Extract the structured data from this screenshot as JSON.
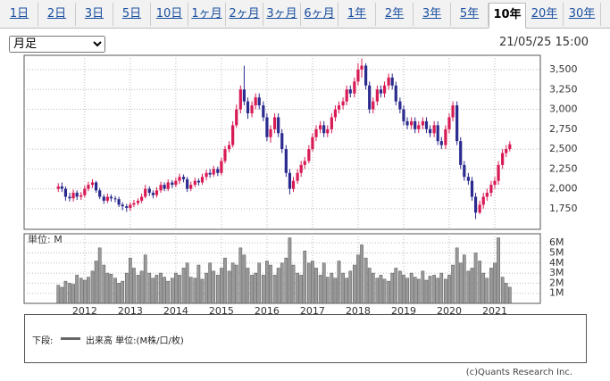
{
  "tabs": [
    "1日",
    "2日",
    "3日",
    "5日",
    "10日",
    "1ヶ月",
    "2ヶ月",
    "3ヶ月",
    "6ヶ月",
    "1年",
    "2年",
    "3年",
    "5年",
    "10年",
    "20年",
    "30年"
  ],
  "period_select": "月足",
  "timestamp": "21/05/25 15:00",
  "chart_data": [
    {
      "type": "candlestick",
      "x": [
        2011.42,
        2011.5,
        2011.58,
        2011.67,
        2011.75,
        2011.83,
        2011.92,
        2012,
        2012.08,
        2012.17,
        2012.25,
        2012.33,
        2012.42,
        2012.5,
        2012.58,
        2012.67,
        2012.75,
        2012.83,
        2012.92,
        2013,
        2013.08,
        2013.17,
        2013.25,
        2013.33,
        2013.42,
        2013.5,
        2013.58,
        2013.67,
        2013.75,
        2013.83,
        2013.92,
        2014,
        2014.08,
        2014.17,
        2014.25,
        2014.33,
        2014.42,
        2014.5,
        2014.58,
        2014.67,
        2014.75,
        2014.83,
        2014.92,
        2015,
        2015.08,
        2015.17,
        2015.25,
        2015.33,
        2015.42,
        2015.5,
        2015.58,
        2015.67,
        2015.75,
        2015.83,
        2015.92,
        2016,
        2016.08,
        2016.17,
        2016.25,
        2016.33,
        2016.42,
        2016.5,
        2016.58,
        2016.67,
        2016.75,
        2016.83,
        2016.92,
        2017,
        2017.08,
        2017.17,
        2017.25,
        2017.33,
        2017.42,
        2017.5,
        2017.58,
        2017.67,
        2017.75,
        2017.83,
        2017.92,
        2018,
        2018.08,
        2018.17,
        2018.25,
        2018.33,
        2018.42,
        2018.5,
        2018.58,
        2018.67,
        2018.75,
        2018.83,
        2018.92,
        2019,
        2019.08,
        2019.17,
        2019.25,
        2019.33,
        2019.42,
        2019.5,
        2019.58,
        2019.67,
        2019.75,
        2019.83,
        2019.92,
        2020,
        2020.08,
        2020.17,
        2020.25,
        2020.33,
        2020.42,
        2020.5,
        2020.58,
        2020.67,
        2020.75,
        2020.83,
        2020.92,
        2021,
        2021.08,
        2021.17,
        2021.25,
        2021.33
      ],
      "open": [
        2000,
        2030,
        2000,
        1900,
        1880,
        1950,
        1900,
        1920,
        2000,
        2050,
        2080,
        1980,
        1900,
        1850,
        1900,
        1880,
        1870,
        1800,
        1780,
        1760,
        1800,
        1820,
        1850,
        1900,
        2000,
        1950,
        1920,
        1980,
        2050,
        2000,
        2080,
        2050,
        2100,
        2150,
        2120,
        2000,
        2050,
        2100,
        2080,
        2150,
        2200,
        2180,
        2250,
        2200,
        2350,
        2500,
        2550,
        2800,
        3000,
        3250,
        3100,
        2950,
        3050,
        3150,
        3050,
        2900,
        2650,
        2750,
        2900,
        2700,
        2500,
        2200,
        2000,
        2100,
        2200,
        2300,
        2350,
        2500,
        2650,
        2750,
        2800,
        2700,
        2750,
        2900,
        3000,
        3050,
        3100,
        3250,
        3200,
        3350,
        3500,
        3550,
        3300,
        3000,
        3100,
        3250,
        3200,
        3300,
        3400,
        3300,
        3100,
        3000,
        2850,
        2800,
        2850,
        2750,
        2800,
        2850,
        2750,
        2700,
        2800,
        2600,
        2550,
        2750,
        2900,
        3050,
        2600,
        2300,
        2150,
        2100,
        1900,
        1700,
        1800,
        1900,
        1950,
        2050,
        2100,
        2300,
        2450,
        2500
      ],
      "high": [
        2070,
        2080,
        2030,
        1950,
        1990,
        1980,
        1960,
        2040,
        2090,
        2120,
        2100,
        2010,
        1930,
        1940,
        1930,
        1910,
        1900,
        1830,
        1810,
        1830,
        1860,
        1880,
        1940,
        2050,
        2030,
        1980,
        2020,
        2090,
        2080,
        2120,
        2110,
        2140,
        2190,
        2180,
        2150,
        2090,
        2140,
        2130,
        2190,
        2240,
        2250,
        2290,
        2280,
        2390,
        2540,
        2600,
        2850,
        3060,
        3300,
        3550,
        3150,
        3100,
        3200,
        3200,
        3100,
        2950,
        2800,
        2950,
        2950,
        2750,
        2550,
        2250,
        2150,
        2250,
        2350,
        2400,
        2550,
        2700,
        2800,
        2850,
        2850,
        2800,
        2950,
        3050,
        3100,
        3150,
        3300,
        3300,
        3400,
        3580,
        3640,
        3580,
        3350,
        3150,
        3300,
        3300,
        3350,
        3450,
        3450,
        3350,
        3150,
        3050,
        2900,
        2900,
        2900,
        2850,
        2900,
        2900,
        2800,
        2850,
        2850,
        2650,
        2800,
        2950,
        3100,
        3100,
        2650,
        2350,
        2200,
        2150,
        1950,
        1850,
        1950,
        2000,
        2100,
        2150,
        2350,
        2500,
        2550,
        2600
      ],
      "low": [
        1960,
        1960,
        1850,
        1840,
        1840,
        1860,
        1860,
        1890,
        1970,
        2010,
        1950,
        1870,
        1810,
        1820,
        1840,
        1830,
        1770,
        1730,
        1710,
        1720,
        1770,
        1790,
        1820,
        1880,
        1910,
        1880,
        1890,
        1950,
        1970,
        1970,
        2010,
        2020,
        2060,
        2080,
        1960,
        1970,
        2020,
        2040,
        2050,
        2110,
        2140,
        2150,
        2160,
        2170,
        2320,
        2460,
        2520,
        2770,
        2950,
        3050,
        2880,
        2900,
        3000,
        3000,
        2850,
        2600,
        2580,
        2700,
        2650,
        2450,
        2150,
        1930,
        1960,
        2060,
        2150,
        2250,
        2320,
        2470,
        2600,
        2700,
        2650,
        2650,
        2700,
        2850,
        2950,
        3000,
        3050,
        3150,
        3150,
        3300,
        3400,
        3250,
        2950,
        2950,
        3050,
        3150,
        3150,
        3250,
        3250,
        3050,
        2950,
        2800,
        2750,
        2750,
        2700,
        2700,
        2750,
        2700,
        2650,
        2650,
        2550,
        2500,
        2500,
        2700,
        2850,
        2550,
        2250,
        2100,
        2050,
        1850,
        1620,
        1680,
        1750,
        1850,
        1900,
        2000,
        2050,
        2250,
        2400,
        2470
      ],
      "close": [
        2030,
        2000,
        1900,
        1880,
        1950,
        1900,
        1920,
        2000,
        2050,
        2080,
        1980,
        1900,
        1850,
        1900,
        1880,
        1870,
        1800,
        1780,
        1760,
        1800,
        1820,
        1850,
        1900,
        2000,
        1950,
        1920,
        1980,
        2050,
        2000,
        2080,
        2050,
        2100,
        2150,
        2120,
        2000,
        2050,
        2100,
        2080,
        2150,
        2200,
        2180,
        2250,
        2200,
        2350,
        2500,
        2550,
        2800,
        3000,
        3250,
        3100,
        2950,
        3050,
        3150,
        3050,
        2900,
        2650,
        2750,
        2900,
        2700,
        2500,
        2200,
        2000,
        2100,
        2200,
        2300,
        2350,
        2500,
        2650,
        2750,
        2800,
        2700,
        2750,
        2900,
        3000,
        3050,
        3100,
        3250,
        3200,
        3350,
        3500,
        3550,
        3300,
        3000,
        3100,
        3250,
        3200,
        3300,
        3400,
        3300,
        3100,
        3000,
        2850,
        2800,
        2850,
        2750,
        2800,
        2850,
        2750,
        2700,
        2800,
        2600,
        2550,
        2750,
        2900,
        3050,
        2600,
        2300,
        2150,
        2100,
        1900,
        1700,
        1800,
        1900,
        1950,
        2050,
        2100,
        2300,
        2450,
        2500,
        2560
      ],
      "xlim": [
        2010.67,
        2022.0
      ],
      "ylim": [
        1490,
        3680
      ],
      "yticks": [
        {
          "value": 1750,
          "label": "1,750"
        },
        {
          "value": 2000,
          "label": "2,000"
        },
        {
          "value": 2250,
          "label": "2,250"
        },
        {
          "value": 2500,
          "label": "2,500"
        },
        {
          "value": 2750,
          "label": "2,750"
        },
        {
          "value": 3000,
          "label": "3,000"
        },
        {
          "value": 3250,
          "label": "3,250"
        },
        {
          "value": 3500,
          "label": "3,500"
        }
      ],
      "grid": true,
      "up_color": "#d81b55",
      "down_color": "#2b2b8f"
    },
    {
      "type": "bar",
      "label": "単位: M",
      "x": [
        2011.42,
        2011.5,
        2011.58,
        2011.67,
        2011.75,
        2011.83,
        2011.92,
        2012,
        2012.08,
        2012.17,
        2012.25,
        2012.33,
        2012.42,
        2012.5,
        2012.58,
        2012.67,
        2012.75,
        2012.83,
        2012.92,
        2013,
        2013.08,
        2013.17,
        2013.25,
        2013.33,
        2013.42,
        2013.5,
        2013.58,
        2013.67,
        2013.75,
        2013.83,
        2013.92,
        2014,
        2014.08,
        2014.17,
        2014.25,
        2014.33,
        2014.42,
        2014.5,
        2014.58,
        2014.67,
        2014.75,
        2014.83,
        2014.92,
        2015,
        2015.08,
        2015.17,
        2015.25,
        2015.33,
        2015.42,
        2015.5,
        2015.58,
        2015.67,
        2015.75,
        2015.83,
        2015.92,
        2016,
        2016.08,
        2016.17,
        2016.25,
        2016.33,
        2016.42,
        2016.5,
        2016.58,
        2016.67,
        2016.75,
        2016.83,
        2016.92,
        2017,
        2017.08,
        2017.17,
        2017.25,
        2017.33,
        2017.42,
        2017.5,
        2017.58,
        2017.67,
        2017.75,
        2017.83,
        2017.92,
        2018,
        2018.08,
        2018.17,
        2018.25,
        2018.33,
        2018.42,
        2018.5,
        2018.58,
        2018.67,
        2018.75,
        2018.83,
        2018.92,
        2019,
        2019.08,
        2019.17,
        2019.25,
        2019.33,
        2019.42,
        2019.5,
        2019.58,
        2019.67,
        2019.75,
        2019.83,
        2019.92,
        2020,
        2020.08,
        2020.17,
        2020.25,
        2020.33,
        2020.42,
        2020.5,
        2020.58,
        2020.67,
        2020.75,
        2020.83,
        2020.92,
        2021,
        2021.08,
        2021.17,
        2021.25,
        2021.33
      ],
      "values": [
        1.8,
        1.6,
        2.2,
        2.0,
        1.9,
        2.8,
        2.5,
        2.3,
        2.6,
        3.2,
        4.2,
        5.5,
        3.8,
        3.0,
        2.9,
        2.5,
        2.0,
        2.2,
        3.0,
        4.5,
        3.5,
        2.8,
        3.2,
        4.8,
        3.0,
        2.5,
        2.8,
        3.0,
        2.6,
        2.2,
        2.5,
        3.0,
        2.8,
        3.5,
        4.0,
        2.6,
        2.5,
        3.8,
        2.4,
        3.0,
        4.0,
        3.2,
        2.8,
        3.5,
        4.5,
        3.2,
        4.0,
        3.8,
        5.5,
        4.8,
        3.5,
        2.8,
        3.0,
        4.0,
        2.8,
        4.2,
        3.8,
        2.8,
        3.5,
        4.0,
        4.5,
        6.5,
        3.8,
        3.0,
        2.8,
        5.2,
        4.0,
        4.2,
        3.5,
        2.8,
        4.0,
        2.6,
        3.0,
        2.5,
        4.2,
        3.0,
        2.5,
        3.2,
        3.8,
        4.8,
        5.8,
        4.5,
        3.5,
        3.0,
        2.5,
        2.8,
        2.4,
        2.2,
        3.0,
        3.5,
        3.2,
        2.8,
        2.5,
        3.0,
        2.6,
        2.4,
        3.2,
        2.3,
        2.7,
        2.8,
        2.5,
        3.0,
        2.4,
        2.8,
        3.8,
        5.5,
        4.0,
        4.8,
        3.2,
        3.5,
        5.0,
        4.2,
        3.0,
        2.5,
        3.5,
        4.0,
        6.5,
        2.6,
        2.0,
        1.6
      ],
      "xlim": [
        2010.67,
        2022.0
      ],
      "xticks": [
        2012,
        2013,
        2014,
        2015,
        2016,
        2017,
        2018,
        2019,
        2020,
        2021
      ],
      "ylim": [
        0,
        6.9
      ],
      "yticks": [
        {
          "value": 1,
          "label": "1M"
        },
        {
          "value": 2,
          "label": "2M"
        },
        {
          "value": 3,
          "label": "3M"
        },
        {
          "value": 4,
          "label": "4M"
        },
        {
          "value": 5,
          "label": "5M"
        },
        {
          "value": 6,
          "label": "6M"
        }
      ],
      "grid": true,
      "color": "#9a9a9a"
    }
  ],
  "legend": {
    "prefix": "下段:",
    "label": "出来高 単位:(M株/口/枚)",
    "color": "#666666"
  },
  "copyright": "(c)Quants Research Inc."
}
